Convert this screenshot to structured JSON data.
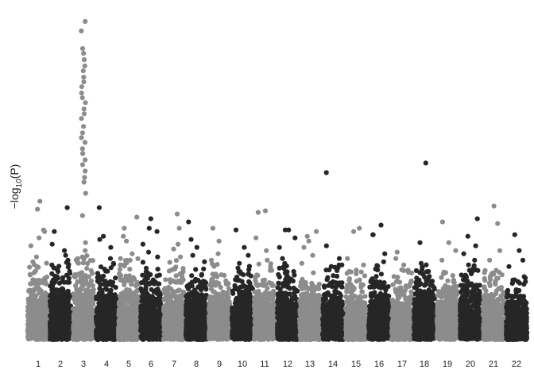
{
  "chart_data": {
    "type": "scatter",
    "subtype": "manhattan",
    "title": "",
    "xlabel": "",
    "ylabel": {
      "prefix": "−log",
      "sub": "10",
      "suffix": "(P)"
    },
    "ylim": [
      0,
      20
    ],
    "grid": false,
    "legend": "none",
    "colors": [
      "#8c8c8c",
      "#262626"
    ],
    "categories": [
      "1",
      "2",
      "3",
      "4",
      "5",
      "6",
      "7",
      "8",
      "9",
      "10",
      "11",
      "12",
      "13",
      "14",
      "15",
      "16",
      "17",
      "18",
      "19",
      "20",
      "21",
      "22"
    ],
    "base_height": [
      3.5,
      3.6,
      3.9,
      3.4,
      3.7,
      3.5,
      3.6,
      3.3,
      3.4,
      3.3,
      3.4,
      3.3,
      3.2,
      3.3,
      3.0,
      3.3,
      3.0,
      3.4,
      3.0,
      3.4,
      3.2,
      2.7
    ],
    "top_points": [
      {
        "chromosome": "1",
        "values": [
          8.7,
          8.2,
          6.9,
          6.8,
          6.4,
          5.9,
          5.2,
          4.9
        ]
      },
      {
        "chromosome": "2",
        "values": [
          8.3,
          6.8,
          6.0,
          5.6,
          5.3,
          5.0,
          4.7
        ]
      },
      {
        "chromosome": "3",
        "values": [
          20.0,
          19.4,
          18.3,
          18.0,
          17.6,
          17.2,
          16.9,
          16.5,
          16.2,
          15.9,
          15.5,
          15.2,
          14.9,
          14.5,
          14.2,
          13.9,
          13.4,
          13.0,
          12.7,
          12.4,
          12.0,
          11.7,
          11.3,
          11.0,
          10.6,
          10.2,
          9.9,
          9.2,
          7.8,
          6.1,
          5.6,
          5.2
        ]
      },
      {
        "chromosome": "4",
        "values": [
          8.3,
          6.5,
          6.3,
          5.8,
          5.1,
          4.8
        ]
      },
      {
        "chromosome": "5",
        "values": [
          7.7,
          7.0,
          6.5,
          6.2,
          5.4,
          5.1
        ]
      },
      {
        "chromosome": "6",
        "values": [
          7.6,
          7.0,
          6.8,
          6.0,
          5.5,
          5.2
        ]
      },
      {
        "chromosome": "7",
        "values": [
          7.9,
          7.0,
          6.0,
          5.7,
          5.2
        ]
      },
      {
        "chromosome": "8",
        "values": [
          7.4,
          6.3,
          5.8,
          5.3,
          4.9
        ]
      },
      {
        "chromosome": "9",
        "values": [
          7.0,
          6.2,
          5.4,
          5.0
        ]
      },
      {
        "chromosome": "10",
        "values": [
          6.9,
          5.8,
          5.3,
          4.8
        ]
      },
      {
        "chromosome": "11",
        "values": [
          8.1,
          8.0,
          6.4,
          5.6,
          5.0
        ]
      },
      {
        "chromosome": "12",
        "values": [
          6.9,
          6.9,
          6.4,
          5.8,
          5.1,
          4.8
        ]
      },
      {
        "chromosome": "13",
        "values": [
          6.8,
          6.5,
          6.2,
          5.8,
          5.3,
          4.8
        ]
      },
      {
        "chromosome": "14",
        "values": [
          10.5,
          5.9,
          5.1,
          4.7
        ]
      },
      {
        "chromosome": "15",
        "values": [
          7.0,
          6.8,
          5.1,
          4.7
        ]
      },
      {
        "chromosome": "16",
        "values": [
          7.2,
          6.6,
          6.6,
          5.4,
          4.9
        ]
      },
      {
        "chromosome": "17",
        "values": [
          5.5,
          5.1,
          4.7
        ]
      },
      {
        "chromosome": "18",
        "values": [
          11.1,
          6.1,
          4.8
        ]
      },
      {
        "chromosome": "19",
        "values": [
          7.4,
          6.1,
          5.6,
          5.0
        ]
      },
      {
        "chromosome": "20",
        "values": [
          7.6,
          6.5,
          5.9,
          5.4,
          5.0
        ]
      },
      {
        "chromosome": "21",
        "values": [
          8.4,
          7.3,
          5.6,
          5.0
        ]
      },
      {
        "chromosome": "22",
        "values": [
          6.6,
          5.6,
          5.0,
          4.6
        ]
      }
    ]
  }
}
